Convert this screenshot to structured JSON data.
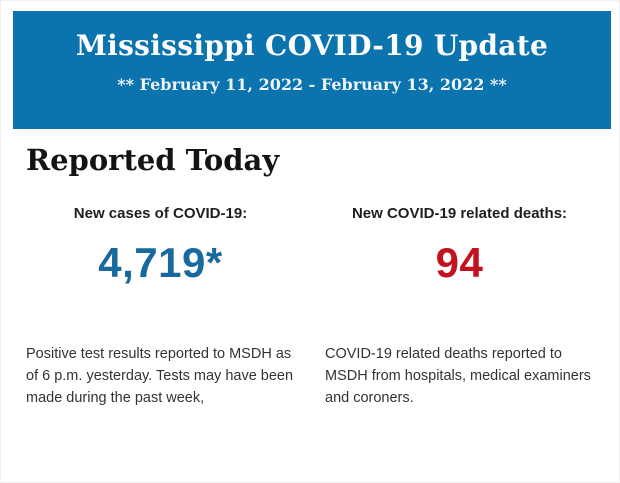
{
  "header": {
    "title": "Mississippi COVID-19 Update",
    "date_range": "** February 11, 2022 - February 13, 2022 **",
    "bg_color": "#0b73ad",
    "text_color": "#fbfdfe"
  },
  "main": {
    "section_title": "Reported Today",
    "stats": [
      {
        "label": "New cases of COVID-19:",
        "value": "4,719*",
        "value_color": "#17699e",
        "description": "Positive test results reported to MSDH as of 6 p.m. yesterday. Tests may have been made during the past week,"
      },
      {
        "label": "New COVID-19 related deaths:",
        "value": "94",
        "value_color": "#c3121f",
        "description": "COVID-19 related deaths reported to MSDH from hospitals, medical examiners and coroners."
      }
    ]
  }
}
